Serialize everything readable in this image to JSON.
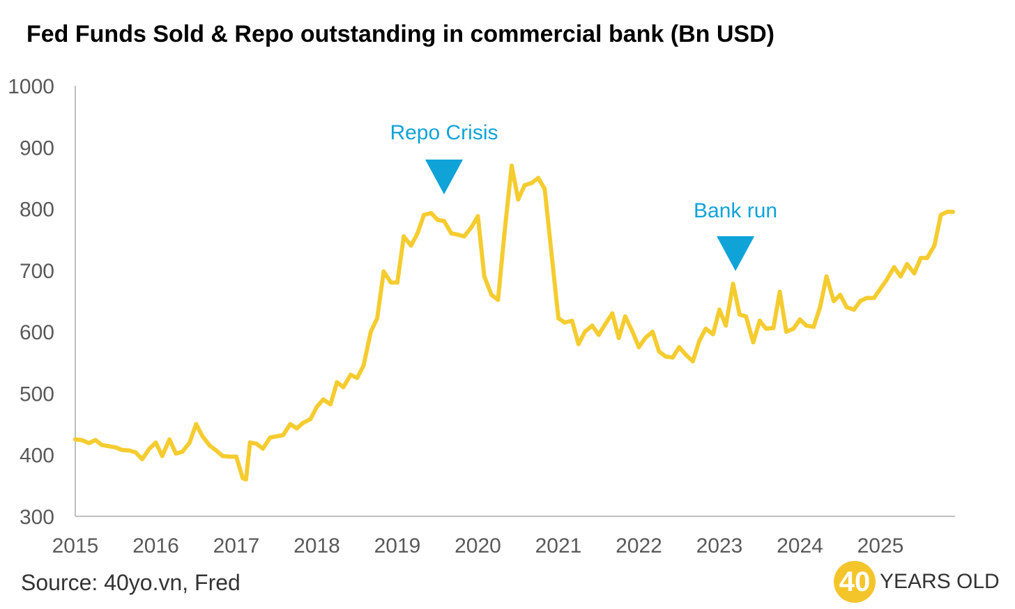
{
  "chart_data": {
    "type": "line",
    "title": "Fed Funds Sold & Repo outstanding in commercial bank (Bn USD)",
    "xlabel": "",
    "ylabel": "",
    "ylim": [
      300,
      1000
    ],
    "xlim": [
      2015,
      2025.9
    ],
    "y_ticks": [
      300,
      400,
      500,
      600,
      700,
      800,
      900,
      1000
    ],
    "x_ticks": [
      2015,
      2016,
      2017,
      2018,
      2019,
      2020,
      2021,
      2022,
      2023,
      2024,
      2025
    ],
    "grid": false,
    "colors": {
      "line": "#f5cc30",
      "annotation": "#0fa3d8",
      "axis": "#bfbfbf",
      "tick_text": "#595959"
    },
    "series": [
      {
        "x": [
          2015.0,
          2015.08,
          2015.17,
          2015.25,
          2015.33,
          2015.42,
          2015.5,
          2015.58,
          2015.67,
          2015.75,
          2015.83,
          2015.92,
          2016.0,
          2016.08,
          2016.17,
          2016.25,
          2016.33,
          2016.42,
          2016.5,
          2016.58,
          2016.67,
          2016.75,
          2016.83,
          2016.92,
          2017.0,
          2017.08,
          2017.12,
          2017.17,
          2017.25,
          2017.33,
          2017.42,
          2017.5,
          2017.58,
          2017.67,
          2017.75,
          2017.83,
          2017.92,
          2018.0,
          2018.08,
          2018.17,
          2018.25,
          2018.33,
          2018.42,
          2018.5,
          2018.58,
          2018.67,
          2018.75,
          2018.83,
          2018.92,
          2019.0,
          2019.08,
          2019.17,
          2019.25,
          2019.33,
          2019.42,
          2019.5,
          2019.58,
          2019.67,
          2019.75,
          2019.83,
          2019.92,
          2020.0,
          2020.08,
          2020.17,
          2020.25,
          2020.33,
          2020.42,
          2020.5,
          2020.58,
          2020.67,
          2020.75,
          2020.83,
          2020.92,
          2021.0,
          2021.08,
          2021.17,
          2021.25,
          2021.33,
          2021.42,
          2021.5,
          2021.58,
          2021.67,
          2021.75,
          2021.83,
          2021.92,
          2022.0,
          2022.08,
          2022.17,
          2022.25,
          2022.33,
          2022.42,
          2022.5,
          2022.58,
          2022.67,
          2022.75,
          2022.83,
          2022.92,
          2023.0,
          2023.08,
          2023.17,
          2023.25,
          2023.33,
          2023.42,
          2023.5,
          2023.58,
          2023.67,
          2023.75,
          2023.83,
          2023.92,
          2024.0,
          2024.08,
          2024.17,
          2024.25,
          2024.33,
          2024.42,
          2024.5,
          2024.58,
          2024.67,
          2024.75,
          2024.83,
          2024.92,
          2025.0,
          2025.08,
          2025.17,
          2025.25,
          2025.33,
          2025.42,
          2025.5,
          2025.58,
          2025.67,
          2025.75,
          2025.83,
          2025.9
        ],
        "y": [
          425,
          424,
          419,
          424,
          416,
          414,
          412,
          408,
          407,
          404,
          393,
          410,
          420,
          398,
          425,
          402,
          405,
          420,
          450,
          430,
          415,
          407,
          398,
          397,
          397,
          362,
          360,
          420,
          418,
          410,
          428,
          430,
          432,
          450,
          443,
          452,
          458,
          478,
          490,
          482,
          518,
          510,
          530,
          525,
          545,
          600,
          622,
          698,
          680,
          680,
          755,
          740,
          760,
          790,
          793,
          782,
          780,
          760,
          758,
          755,
          770,
          788,
          690,
          660,
          652,
          760,
          870,
          815,
          838,
          842,
          850,
          832,
          720,
          622,
          615,
          618,
          580,
          600,
          610,
          595,
          612,
          630,
          590,
          625,
          600,
          575,
          590,
          600,
          568,
          560,
          558,
          575,
          563,
          552,
          585,
          605,
          596,
          636,
          610,
          678,
          628,
          625,
          583,
          618,
          605,
          606,
          665,
          600,
          605,
          620,
          610,
          608,
          640,
          690,
          650,
          660,
          640,
          636,
          650,
          655,
          655,
          670,
          685,
          705,
          690,
          710,
          695,
          720,
          720,
          740,
          790,
          795,
          795
        ]
      }
    ],
    "annotations": [
      {
        "text": "Repo Crisis",
        "x": 2019.58
      },
      {
        "text": "Bank run",
        "x": 2023.2
      }
    ]
  },
  "footer": {
    "source": "Source: 40yo.vn, Fred",
    "brand_number": "40",
    "brand_text": "YEARS OLD"
  }
}
